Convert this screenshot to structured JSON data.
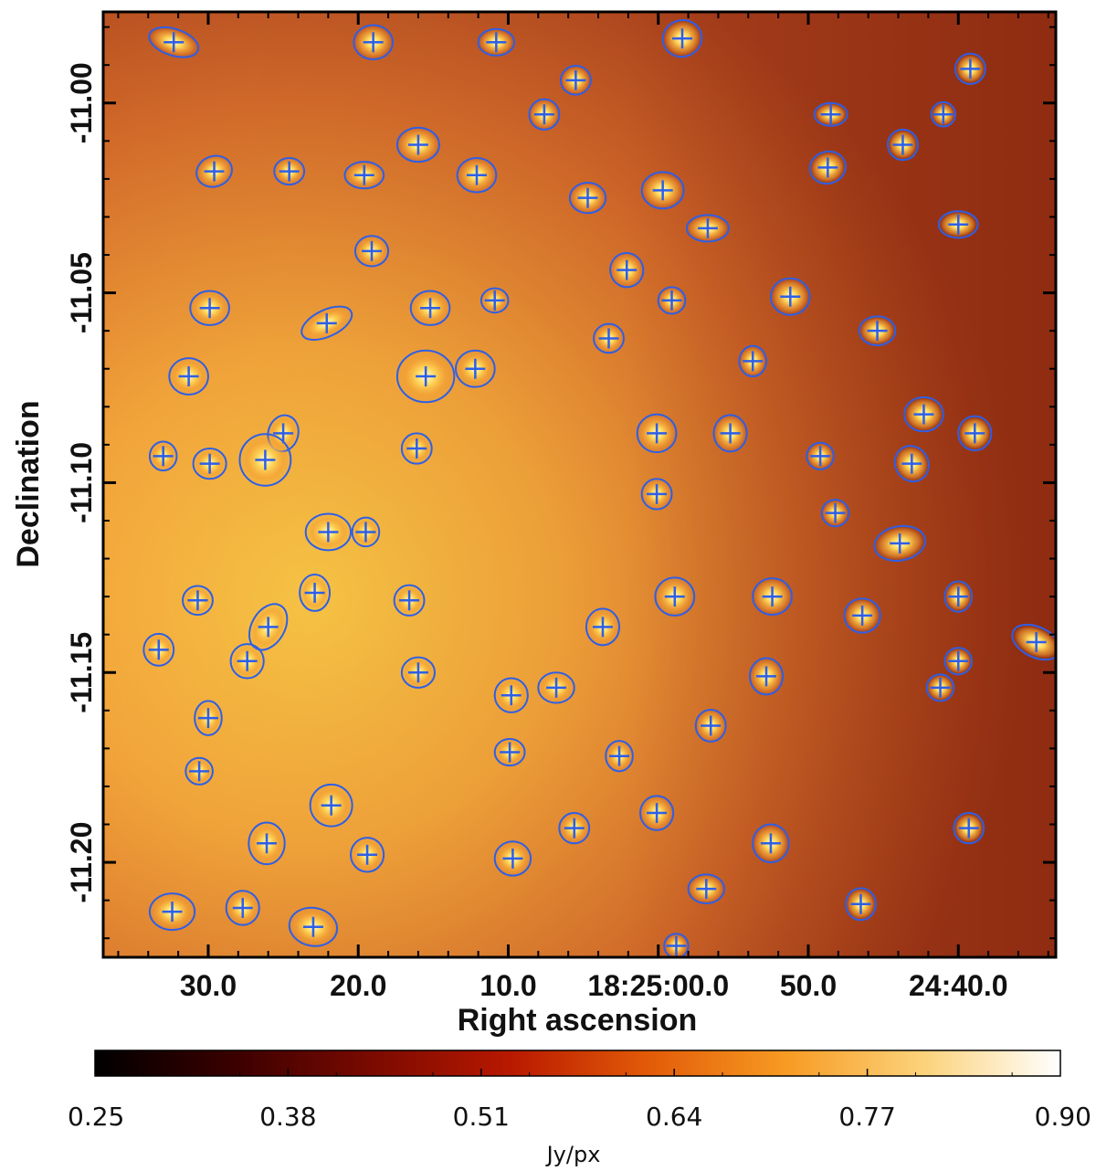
{
  "chart_data": {
    "type": "image_map_with_source_markers",
    "xlabel": "Right ascension",
    "ylabel": "Declination",
    "x_tick_labels": [
      "30.0",
      "20.0",
      "10.0",
      "18:25:00.0",
      "50.0",
      "24:40.0"
    ],
    "x_ticks_ra_seconds": [
      30,
      20,
      10,
      0,
      -10,
      -20
    ],
    "y_tick_labels": [
      "-11.00",
      "-11.05",
      "-11.10",
      "-11.15",
      "-11.20"
    ],
    "y_ticks_dec": [
      -11.0,
      -11.05,
      -11.1,
      -11.15,
      -11.2
    ],
    "xlim_ra_seconds": [
      37.0,
      -26.5
    ],
    "ylim_dec": [
      -11.225,
      -10.976
    ],
    "colorbar": {
      "unit": "Jy/px",
      "tick_labels": [
        "0.25",
        "0.38",
        "0.51",
        "0.64",
        "0.77",
        "0.90"
      ],
      "range": [
        0.25,
        0.9
      ],
      "stops": [
        "#000000",
        "#3a0000",
        "#7a0a00",
        "#b81800",
        "#e25a08",
        "#f79a22",
        "#fcd27a",
        "#ffffff"
      ]
    },
    "marker_color": "#2e5fe6",
    "sources": [
      {
        "ra": 32.3,
        "dec": -10.984,
        "a": 1.7,
        "b": 0.0035,
        "tilt": 18
      },
      {
        "ra": 19.0,
        "dec": -10.984,
        "a": 1.3,
        "b": 0.0045,
        "tilt": 0
      },
      {
        "ra": 10.8,
        "dec": -10.984,
        "a": 1.2,
        "b": 0.0035,
        "tilt": 0
      },
      {
        "ra": -1.6,
        "dec": -10.983,
        "a": 1.3,
        "b": 0.0048,
        "tilt": -15
      },
      {
        "ra": -20.8,
        "dec": -10.991,
        "a": 1.0,
        "b": 0.004,
        "tilt": 0
      },
      {
        "ra": 5.5,
        "dec": -10.994,
        "a": 1.0,
        "b": 0.0038,
        "tilt": -10
      },
      {
        "ra": 7.6,
        "dec": -11.003,
        "a": 1.0,
        "b": 0.004,
        "tilt": 0
      },
      {
        "ra": -11.5,
        "dec": -11.003,
        "a": 1.1,
        "b": 0.003,
        "tilt": 0
      },
      {
        "ra": -19.0,
        "dec": -11.003,
        "a": 0.8,
        "b": 0.0032,
        "tilt": 0
      },
      {
        "ra": 16.0,
        "dec": -11.011,
        "a": 1.4,
        "b": 0.0045,
        "tilt": 0
      },
      {
        "ra": -16.3,
        "dec": -11.011,
        "a": 1.0,
        "b": 0.004,
        "tilt": -15
      },
      {
        "ra": 29.6,
        "dec": -11.018,
        "a": 1.2,
        "b": 0.004,
        "tilt": -20
      },
      {
        "ra": 24.6,
        "dec": -11.018,
        "a": 1.0,
        "b": 0.0035,
        "tilt": 0
      },
      {
        "ra": 19.6,
        "dec": -11.019,
        "a": 1.3,
        "b": 0.0035,
        "tilt": 0
      },
      {
        "ra": 12.1,
        "dec": -11.019,
        "a": 1.3,
        "b": 0.0045,
        "tilt": 0
      },
      {
        "ra": -11.3,
        "dec": -11.017,
        "a": 1.2,
        "b": 0.0042,
        "tilt": -15
      },
      {
        "ra": 4.7,
        "dec": -11.025,
        "a": 1.2,
        "b": 0.004,
        "tilt": 0
      },
      {
        "ra": -0.3,
        "dec": -11.023,
        "a": 1.4,
        "b": 0.0048,
        "tilt": 0
      },
      {
        "ra": -3.3,
        "dec": -11.033,
        "a": 1.4,
        "b": 0.0035,
        "tilt": 0
      },
      {
        "ra": -20.0,
        "dec": -11.032,
        "a": 1.3,
        "b": 0.0035,
        "tilt": 0
      },
      {
        "ra": 19.1,
        "dec": -11.039,
        "a": 1.1,
        "b": 0.004,
        "tilt": 0
      },
      {
        "ra": 2.1,
        "dec": -11.044,
        "a": 1.1,
        "b": 0.0045,
        "tilt": -15
      },
      {
        "ra": 29.9,
        "dec": -11.054,
        "a": 1.3,
        "b": 0.0045,
        "tilt": 0
      },
      {
        "ra": 15.2,
        "dec": -11.054,
        "a": 1.3,
        "b": 0.0045,
        "tilt": 0
      },
      {
        "ra": 10.9,
        "dec": -11.052,
        "a": 0.9,
        "b": 0.0032,
        "tilt": 0
      },
      {
        "ra": 3.3,
        "dec": -11.062,
        "a": 1.0,
        "b": 0.0038,
        "tilt": 0
      },
      {
        "ra": -0.9,
        "dec": -11.052,
        "a": 0.9,
        "b": 0.0035,
        "tilt": 0
      },
      {
        "ra": -8.8,
        "dec": -11.051,
        "a": 1.3,
        "b": 0.0048,
        "tilt": 0
      },
      {
        "ra": 22.1,
        "dec": -11.058,
        "a": 1.8,
        "b": 0.0035,
        "tilt": -25
      },
      {
        "ra": -14.6,
        "dec": -11.06,
        "a": 1.2,
        "b": 0.0038,
        "tilt": 0
      },
      {
        "ra": 31.3,
        "dec": -11.072,
        "a": 1.3,
        "b": 0.0048,
        "tilt": 0
      },
      {
        "ra": 15.5,
        "dec": -11.072,
        "a": 1.9,
        "b": 0.0068,
        "tilt": 0
      },
      {
        "ra": 12.2,
        "dec": -11.07,
        "a": 1.3,
        "b": 0.0048,
        "tilt": 0
      },
      {
        "ra": -6.3,
        "dec": -11.068,
        "a": 0.9,
        "b": 0.004,
        "tilt": 0
      },
      {
        "ra": 0.1,
        "dec": -11.087,
        "a": 1.3,
        "b": 0.005,
        "tilt": 0
      },
      {
        "ra": -4.8,
        "dec": -11.087,
        "a": 1.1,
        "b": 0.0048,
        "tilt": 0
      },
      {
        "ra": -17.7,
        "dec": -11.082,
        "a": 1.3,
        "b": 0.0045,
        "tilt": 0
      },
      {
        "ra": -21.1,
        "dec": -11.087,
        "a": 1.1,
        "b": 0.0045,
        "tilt": 0
      },
      {
        "ra": 33.0,
        "dec": -11.093,
        "a": 0.9,
        "b": 0.0038,
        "tilt": 0
      },
      {
        "ra": 29.9,
        "dec": -11.095,
        "a": 1.1,
        "b": 0.004,
        "tilt": 0
      },
      {
        "ra": 25.0,
        "dec": -11.087,
        "a": 1.0,
        "b": 0.0048,
        "tilt": 15
      },
      {
        "ra": 26.2,
        "dec": -11.094,
        "a": 1.7,
        "b": 0.0068,
        "tilt": 0
      },
      {
        "ra": 16.1,
        "dec": -11.091,
        "a": 1.0,
        "b": 0.004,
        "tilt": 0
      },
      {
        "ra": -10.8,
        "dec": -11.093,
        "a": 0.9,
        "b": 0.0035,
        "tilt": -15
      },
      {
        "ra": -16.9,
        "dec": -11.095,
        "a": 1.1,
        "b": 0.0048,
        "tilt": -30
      },
      {
        "ra": 0.1,
        "dec": -11.103,
        "a": 1.0,
        "b": 0.004,
        "tilt": 0
      },
      {
        "ra": -11.8,
        "dec": -11.108,
        "a": 0.9,
        "b": 0.0035,
        "tilt": 0
      },
      {
        "ra": 22.0,
        "dec": -11.113,
        "a": 1.5,
        "b": 0.0048,
        "tilt": 0
      },
      {
        "ra": 19.5,
        "dec": -11.113,
        "a": 0.9,
        "b": 0.0038,
        "tilt": 0
      },
      {
        "ra": -16.1,
        "dec": -11.116,
        "a": 1.7,
        "b": 0.0045,
        "tilt": -10
      },
      {
        "ra": 30.7,
        "dec": -11.131,
        "a": 1.0,
        "b": 0.0038,
        "tilt": 0
      },
      {
        "ra": 26.0,
        "dec": -11.138,
        "a": 1.1,
        "b": 0.0065,
        "tilt": 30
      },
      {
        "ra": 22.9,
        "dec": -11.129,
        "a": 1.0,
        "b": 0.0048,
        "tilt": 0
      },
      {
        "ra": 16.6,
        "dec": -11.131,
        "a": 1.0,
        "b": 0.004,
        "tilt": 0
      },
      {
        "ra": 3.7,
        "dec": -11.138,
        "a": 1.1,
        "b": 0.0048,
        "tilt": 0
      },
      {
        "ra": -1.1,
        "dec": -11.13,
        "a": 1.3,
        "b": 0.005,
        "tilt": 0
      },
      {
        "ra": -7.6,
        "dec": -11.13,
        "a": 1.3,
        "b": 0.0048,
        "tilt": 0
      },
      {
        "ra": -13.6,
        "dec": -11.135,
        "a": 1.2,
        "b": 0.0045,
        "tilt": 0
      },
      {
        "ra": -20.0,
        "dec": -11.13,
        "a": 0.9,
        "b": 0.004,
        "tilt": 0
      },
      {
        "ra": 33.3,
        "dec": -11.144,
        "a": 1.0,
        "b": 0.0042,
        "tilt": 0
      },
      {
        "ra": 27.4,
        "dec": -11.147,
        "a": 1.1,
        "b": 0.0045,
        "tilt": 0
      },
      {
        "ra": -25.2,
        "dec": -11.142,
        "a": 1.7,
        "b": 0.004,
        "tilt": 25
      },
      {
        "ra": -20.0,
        "dec": -11.147,
        "a": 0.9,
        "b": 0.0035,
        "tilt": 0
      },
      {
        "ra": 16.0,
        "dec": -11.15,
        "a": 1.1,
        "b": 0.004,
        "tilt": 0
      },
      {
        "ra": 9.8,
        "dec": -11.156,
        "a": 1.1,
        "b": 0.0045,
        "tilt": 0
      },
      {
        "ra": 6.8,
        "dec": -11.154,
        "a": 1.2,
        "b": 0.004,
        "tilt": 0
      },
      {
        "ra": -7.2,
        "dec": -11.151,
        "a": 1.1,
        "b": 0.0048,
        "tilt": 0
      },
      {
        "ra": -18.8,
        "dec": -11.154,
        "a": 0.9,
        "b": 0.0035,
        "tilt": 0
      },
      {
        "ra": 30.0,
        "dec": -11.162,
        "a": 0.9,
        "b": 0.0045,
        "tilt": 0
      },
      {
        "ra": -3.5,
        "dec": -11.164,
        "a": 1.0,
        "b": 0.0042,
        "tilt": 0
      },
      {
        "ra": 30.6,
        "dec": -11.176,
        "a": 0.9,
        "b": 0.0035,
        "tilt": 0
      },
      {
        "ra": 9.9,
        "dec": -11.171,
        "a": 1.0,
        "b": 0.0035,
        "tilt": 0
      },
      {
        "ra": 2.6,
        "dec": -11.172,
        "a": 0.9,
        "b": 0.004,
        "tilt": 0
      },
      {
        "ra": 21.8,
        "dec": -11.185,
        "a": 1.4,
        "b": 0.0055,
        "tilt": 0
      },
      {
        "ra": 5.6,
        "dec": -11.191,
        "a": 1.0,
        "b": 0.004,
        "tilt": 0
      },
      {
        "ra": 0.1,
        "dec": -11.187,
        "a": 1.1,
        "b": 0.0045,
        "tilt": 0
      },
      {
        "ra": -7.5,
        "dec": -11.195,
        "a": 1.2,
        "b": 0.005,
        "tilt": 0
      },
      {
        "ra": -20.7,
        "dec": -11.191,
        "a": 1.0,
        "b": 0.004,
        "tilt": 0
      },
      {
        "ra": 26.1,
        "dec": -11.195,
        "a": 1.2,
        "b": 0.0055,
        "tilt": 0
      },
      {
        "ra": 19.4,
        "dec": -11.198,
        "a": 1.1,
        "b": 0.0045,
        "tilt": 0
      },
      {
        "ra": 9.7,
        "dec": -11.199,
        "a": 1.2,
        "b": 0.0045,
        "tilt": 0
      },
      {
        "ra": -3.2,
        "dec": -11.207,
        "a": 1.2,
        "b": 0.0038,
        "tilt": 0
      },
      {
        "ra": 32.4,
        "dec": -11.213,
        "a": 1.5,
        "b": 0.0048,
        "tilt": 0
      },
      {
        "ra": 27.7,
        "dec": -11.212,
        "a": 1.1,
        "b": 0.0045,
        "tilt": 0
      },
      {
        "ra": 23.0,
        "dec": -11.217,
        "a": 1.6,
        "b": 0.005,
        "tilt": 10
      },
      {
        "ra": -1.2,
        "dec": -11.222,
        "a": 0.8,
        "b": 0.0032,
        "tilt": 0
      },
      {
        "ra": -13.5,
        "dec": -11.211,
        "a": 1.0,
        "b": 0.0042,
        "tilt": 0
      }
    ]
  }
}
